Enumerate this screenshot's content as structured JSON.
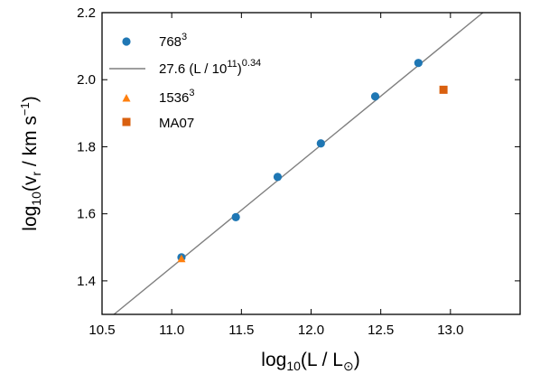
{
  "chart_data": {
    "type": "scatter",
    "xlim": [
      10.5,
      13.5
    ],
    "ylim": [
      1.3,
      2.2
    ],
    "xticks": [
      "10.5",
      "11.0",
      "11.5",
      "12.0",
      "12.5",
      "13.0"
    ],
    "yticks": [
      "1.4",
      "1.6",
      "1.8",
      "2.0",
      "2.2"
    ],
    "xlabel": {
      "main": "log",
      "sub": "10",
      "rest": "(L / L",
      "sun": "⊙",
      "close": ")"
    },
    "ylabel": {
      "main": "log",
      "sub": "10",
      "rest": "(v",
      "vsub": "r",
      "mid": " / km s",
      "sup": "−1",
      "close": ")"
    },
    "legend_position": "upper-left",
    "series": [
      {
        "name": "768³",
        "label_base": "768",
        "label_sup": "3",
        "marker": "circle",
        "color": "#1f77b4",
        "points": [
          [
            11.07,
            1.47
          ],
          [
            11.46,
            1.59
          ],
          [
            11.76,
            1.71
          ],
          [
            12.07,
            1.81
          ],
          [
            12.46,
            1.95
          ],
          [
            12.77,
            2.05
          ]
        ]
      },
      {
        "name": "27.6 (L / 10¹¹)^0.34",
        "label_base": "27.6 (L / 10",
        "label_sup1": "11",
        "label_mid": ")",
        "label_sup2": "0.34",
        "marker": "line",
        "color": "#7f7f7f",
        "line_x": [
          10.5,
          13.5
        ],
        "slope": 0.34,
        "intercept": 1.4409
      },
      {
        "name": "1536³",
        "label_base": "1536",
        "label_sup": "3",
        "marker": "triangle",
        "color": "#ff7f0e",
        "points": [
          [
            11.07,
            1.465
          ]
        ]
      },
      {
        "name": "MA07",
        "label_base": "MA07",
        "marker": "square",
        "color": "#d9600f",
        "points": [
          [
            12.95,
            1.97
          ]
        ]
      }
    ]
  }
}
